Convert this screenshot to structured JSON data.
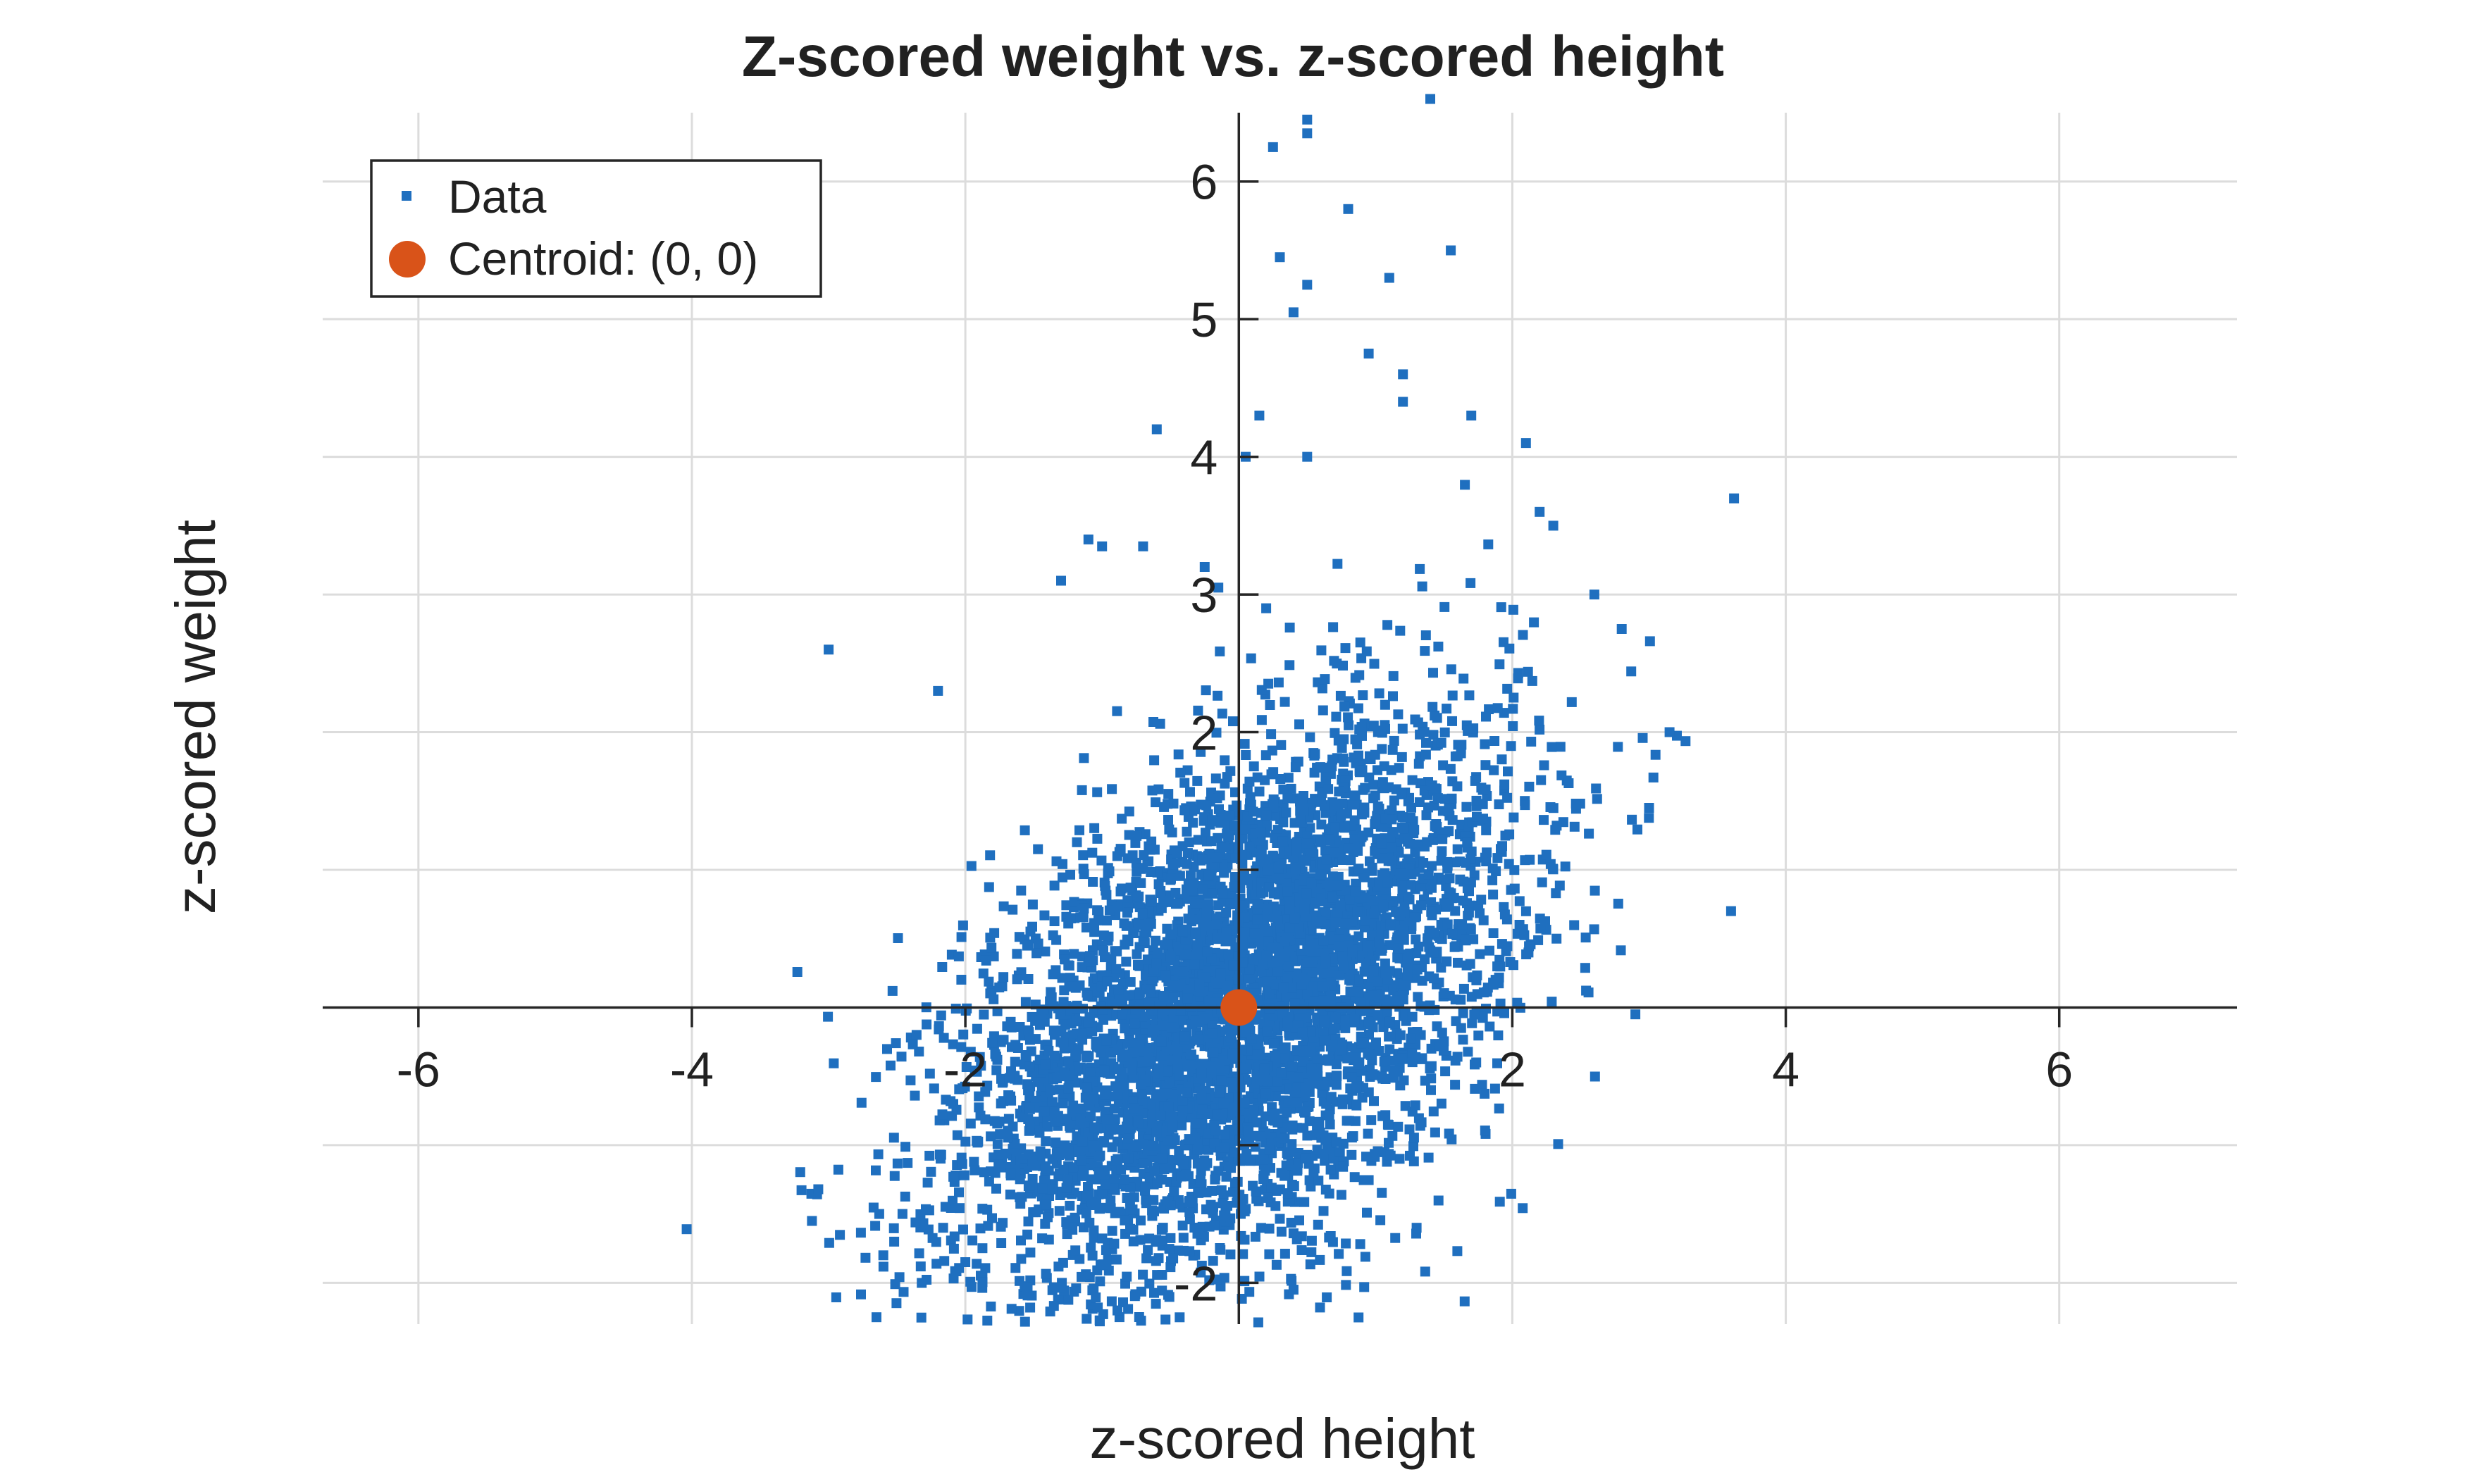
{
  "chart_data": {
    "type": "scatter",
    "title": "Z-scored weight vs. z-scored height",
    "xlabel": "z-scored height",
    "ylabel": "z-scored weight",
    "xlim": [
      -6.7,
      7.3
    ],
    "ylim": [
      -2.3,
      6.5
    ],
    "xticks": [
      -6,
      -4,
      -2,
      0,
      2,
      4,
      6
    ],
    "xtick_labels": [
      "-6",
      "-4",
      "-2",
      "",
      "2",
      "4",
      "6"
    ],
    "yticks": [
      -2,
      -1,
      0,
      1,
      2,
      3,
      4,
      5,
      6
    ],
    "ytick_labels": [
      "-2",
      "",
      "",
      "",
      "2",
      "3",
      "4",
      "5",
      "6"
    ],
    "grid": true,
    "axes_location": "origin",
    "legend": {
      "position": "top-left",
      "entries": [
        {
          "label": "Data",
          "marker": "square",
          "color": "#1f6fbf"
        },
        {
          "label": "Centroid: (0, 0)",
          "marker": "circle",
          "color": "#d95319"
        }
      ]
    },
    "series": [
      {
        "name": "Data",
        "color": "#1f6fbf",
        "marker": "square",
        "n_points": 5000,
        "correlation": 0.5,
        "mean": [
          0,
          0
        ],
        "outliers": [
          [
            0.25,
            6.25
          ],
          [
            0.5,
            6.35
          ],
          [
            0.5,
            6.45
          ],
          [
            1.4,
            6.6
          ],
          [
            0.8,
            5.8
          ],
          [
            0.3,
            5.45
          ],
          [
            1.55,
            5.5
          ],
          [
            1.1,
            5.3
          ],
          [
            0.5,
            5.25
          ],
          [
            0.4,
            5.05
          ],
          [
            0.95,
            4.75
          ],
          [
            1.2,
            4.6
          ],
          [
            1.2,
            4.4
          ],
          [
            -0.6,
            4.2
          ],
          [
            0.15,
            4.3
          ],
          [
            1.7,
            4.3
          ],
          [
            2.1,
            4.1
          ],
          [
            0.05,
            4.0
          ],
          [
            0.5,
            4.0
          ],
          [
            -3.0,
            2.6
          ],
          [
            -1.1,
            3.4
          ],
          [
            -1.0,
            3.35
          ],
          [
            -0.7,
            3.35
          ],
          [
            -1.3,
            3.1
          ],
          [
            -0.25,
            3.2
          ],
          [
            2.8,
            2.75
          ],
          [
            3.15,
            2.0
          ],
          [
            3.6,
            0.7
          ],
          [
            2.9,
            -0.05
          ],
          [
            -2.2,
            2.3
          ],
          [
            -2.6,
            -1.8
          ],
          [
            -2.65,
            -2.25
          ],
          [
            -2.0,
            -1.85
          ],
          [
            1.3,
            -1.6
          ],
          [
            3.0,
            1.45
          ],
          [
            2.3,
            3.5
          ],
          [
            2.6,
            3.0
          ],
          [
            2.2,
            3.6
          ],
          [
            -0.15,
            3.05
          ],
          [
            0.2,
            2.9
          ]
        ]
      },
      {
        "name": "Centroid: (0, 0)",
        "color": "#d95319",
        "marker": "circle",
        "x": [
          0
        ],
        "y": [
          0
        ]
      }
    ]
  }
}
